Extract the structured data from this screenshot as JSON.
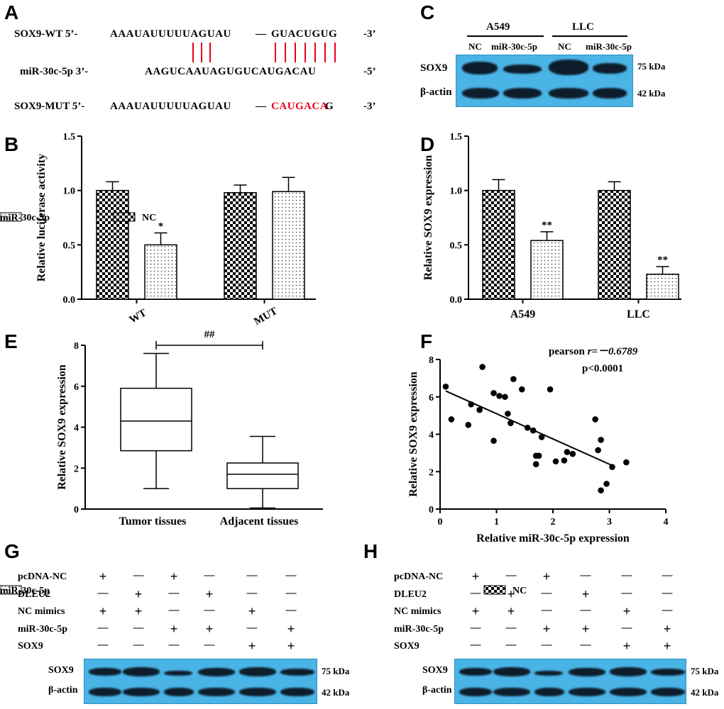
{
  "panels": {
    "A": "A",
    "B": "B",
    "C": "C",
    "D": "D",
    "E": "E",
    "F": "F",
    "G": "G",
    "H": "H"
  },
  "panelA": {
    "rows": [
      {
        "name": "SOX9-WT 5’-",
        "seq_a": "AAAUAUUUUUAGUAU",
        "dash": "—",
        "seq_b": "GUACUGUG",
        "end": "-3’"
      },
      {
        "name": "miR-30c-5p 3’-",
        "seq": "AAGUCAAUAGUGUCAUGACAU",
        "end": "-5’"
      },
      {
        "name": "SOX9-MUT 5’-",
        "seq_a": "AAAUAUUUUUAGUAU",
        "dash": "—",
        "seq_mut": "CAUGACA",
        "seq_tail": "G",
        "end": "-3’"
      }
    ],
    "mut_color": "#e8001b"
  },
  "panelC": {
    "cell_lines": [
      "A549",
      "LLC"
    ],
    "lanes": [
      "NC",
      "miR-30c-5p",
      "NC",
      "miR-30c-5p"
    ],
    "proteins": [
      "SOX9",
      "β-actin"
    ],
    "sizes": [
      "75 kDa",
      "42 kDa"
    ]
  },
  "chart_data": [
    {
      "id": "B",
      "type": "bar",
      "ylabel": "Relative luciferase activity",
      "categories": [
        "WT",
        "MUT"
      ],
      "ylim": [
        0,
        1.5
      ],
      "yticks": [
        "0.0",
        "0.5",
        "1.0",
        "1.5"
      ],
      "legend": [
        "NC",
        "miR-30c-5p"
      ],
      "series": [
        {
          "name": "NC",
          "values": [
            1.0,
            0.98
          ],
          "errors": [
            0.08,
            0.07
          ]
        },
        {
          "name": "miR-30c-5p",
          "values": [
            0.5,
            0.99
          ],
          "errors": [
            0.11,
            0.13
          ]
        }
      ],
      "annotations": [
        "*",
        ""
      ]
    },
    {
      "id": "D",
      "type": "bar",
      "ylabel": "Relative  SOX9 expression",
      "categories": [
        "A549",
        "LLC"
      ],
      "ylim": [
        0,
        1.5
      ],
      "yticks": [
        "0.0",
        "0.5",
        "1.0",
        "1.5"
      ],
      "legend": [
        "NC",
        "miR-30c-5p"
      ],
      "series": [
        {
          "name": "NC",
          "values": [
            1.0,
            1.0
          ],
          "errors": [
            0.1,
            0.08
          ]
        },
        {
          "name": "miR-30c-5p",
          "values": [
            0.54,
            0.23
          ],
          "errors": [
            0.08,
            0.07
          ]
        }
      ],
      "annotations": [
        "**",
        "**"
      ]
    },
    {
      "id": "E",
      "type": "box",
      "ylabel": "Relative  SOX9 expression",
      "categories": [
        "Tumor tissues",
        "Adjacent tissues"
      ],
      "ylim": [
        0,
        8
      ],
      "yticks": [
        "0",
        "2",
        "4",
        "6",
        "8"
      ],
      "boxes": [
        {
          "min": 1.0,
          "q1": 2.85,
          "median": 4.3,
          "q3": 5.9,
          "max": 7.6
        },
        {
          "min": 0.05,
          "q1": 1.0,
          "median": 1.7,
          "q3": 2.25,
          "max": 3.55
        }
      ],
      "significance": "##"
    },
    {
      "id": "F",
      "type": "scatter",
      "xlabel": "Relative miR-30c-5p expression",
      "ylabel": "Relative  SOX9 expression",
      "xlim": [
        0,
        4
      ],
      "ylim": [
        0,
        8
      ],
      "xticks": [
        "0",
        "1",
        "2",
        "3",
        "4"
      ],
      "yticks": [
        "0",
        "2",
        "4",
        "6",
        "8"
      ],
      "stat_label": "pearson ",
      "stat_r": "r=－0.6789",
      "stat_p": "p<0.0001",
      "points": [
        [
          0.1,
          6.55
        ],
        [
          0.2,
          4.8
        ],
        [
          0.5,
          4.5
        ],
        [
          0.55,
          5.6
        ],
        [
          0.7,
          5.3
        ],
        [
          0.75,
          7.6
        ],
        [
          0.95,
          6.2
        ],
        [
          0.95,
          3.65
        ],
        [
          1.05,
          6.05
        ],
        [
          1.15,
          6.0
        ],
        [
          1.2,
          5.1
        ],
        [
          1.25,
          4.6
        ],
        [
          1.3,
          6.95
        ],
        [
          1.45,
          6.4
        ],
        [
          1.55,
          4.35
        ],
        [
          1.65,
          4.2
        ],
        [
          1.7,
          2.4
        ],
        [
          1.7,
          2.85
        ],
        [
          1.8,
          3.85
        ],
        [
          1.75,
          2.85
        ],
        [
          1.95,
          6.4
        ],
        [
          2.05,
          2.55
        ],
        [
          2.2,
          2.6
        ],
        [
          2.25,
          3.05
        ],
        [
          2.35,
          2.95
        ],
        [
          2.75,
          4.8
        ],
        [
          2.8,
          3.15
        ],
        [
          2.85,
          3.7
        ],
        [
          2.85,
          1.0
        ],
        [
          2.95,
          1.35
        ],
        [
          3.05,
          2.25
        ],
        [
          3.3,
          2.5
        ]
      ],
      "fit": {
        "slope": -1.35,
        "intercept": 6.45
      }
    }
  ],
  "treatment": {
    "rows": [
      "pcDNA-NC",
      "DLEU2",
      "NC mimics",
      "miR-30c-5p",
      "SOX9"
    ],
    "matrix": [
      [
        "+",
        "—",
        "+",
        "—",
        "—",
        "—"
      ],
      [
        "—",
        "+",
        "—",
        "+",
        "—",
        "—"
      ],
      [
        "+",
        "+",
        "—",
        "—",
        "+",
        "—"
      ],
      [
        "—",
        "—",
        "+",
        "+",
        "—",
        "+"
      ],
      [
        "—",
        "—",
        "—",
        "—",
        "+",
        "+"
      ]
    ],
    "proteins": [
      "SOX9",
      "β-actin"
    ],
    "sizes_G": [
      "75 kDa",
      "42 kDa"
    ],
    "sizes_H": [
      "75 kDa",
      "42 kDa"
    ]
  }
}
